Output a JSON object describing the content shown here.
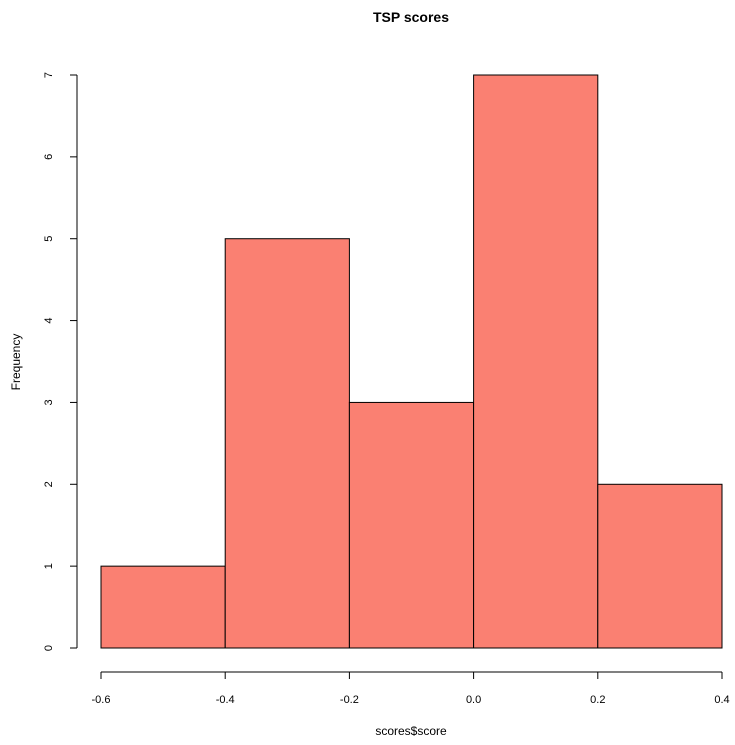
{
  "chart_data": {
    "type": "bar",
    "title": "TSP scores",
    "xlabel": "scores$score",
    "ylabel": "Frequency",
    "bin_edges": [
      -0.6,
      -0.4,
      -0.2,
      0.0,
      0.2,
      0.4
    ],
    "values": [
      1,
      5,
      3,
      7,
      2
    ],
    "x_ticks": [
      -0.6,
      -0.4,
      -0.2,
      0.0,
      0.2,
      0.4
    ],
    "x_tick_labels": [
      "-0.6",
      "-0.4",
      "-0.2",
      "0.0",
      "0.2",
      "0.4"
    ],
    "y_ticks": [
      0,
      1,
      2,
      3,
      4,
      5,
      6,
      7
    ],
    "y_tick_labels": [
      "0",
      "1",
      "2",
      "3",
      "4",
      "5",
      "6",
      "7"
    ],
    "xlim": [
      -0.6,
      0.4
    ],
    "ylim": [
      0,
      7
    ],
    "bar_color": "#FA8072",
    "grid": false,
    "legend": "none"
  }
}
